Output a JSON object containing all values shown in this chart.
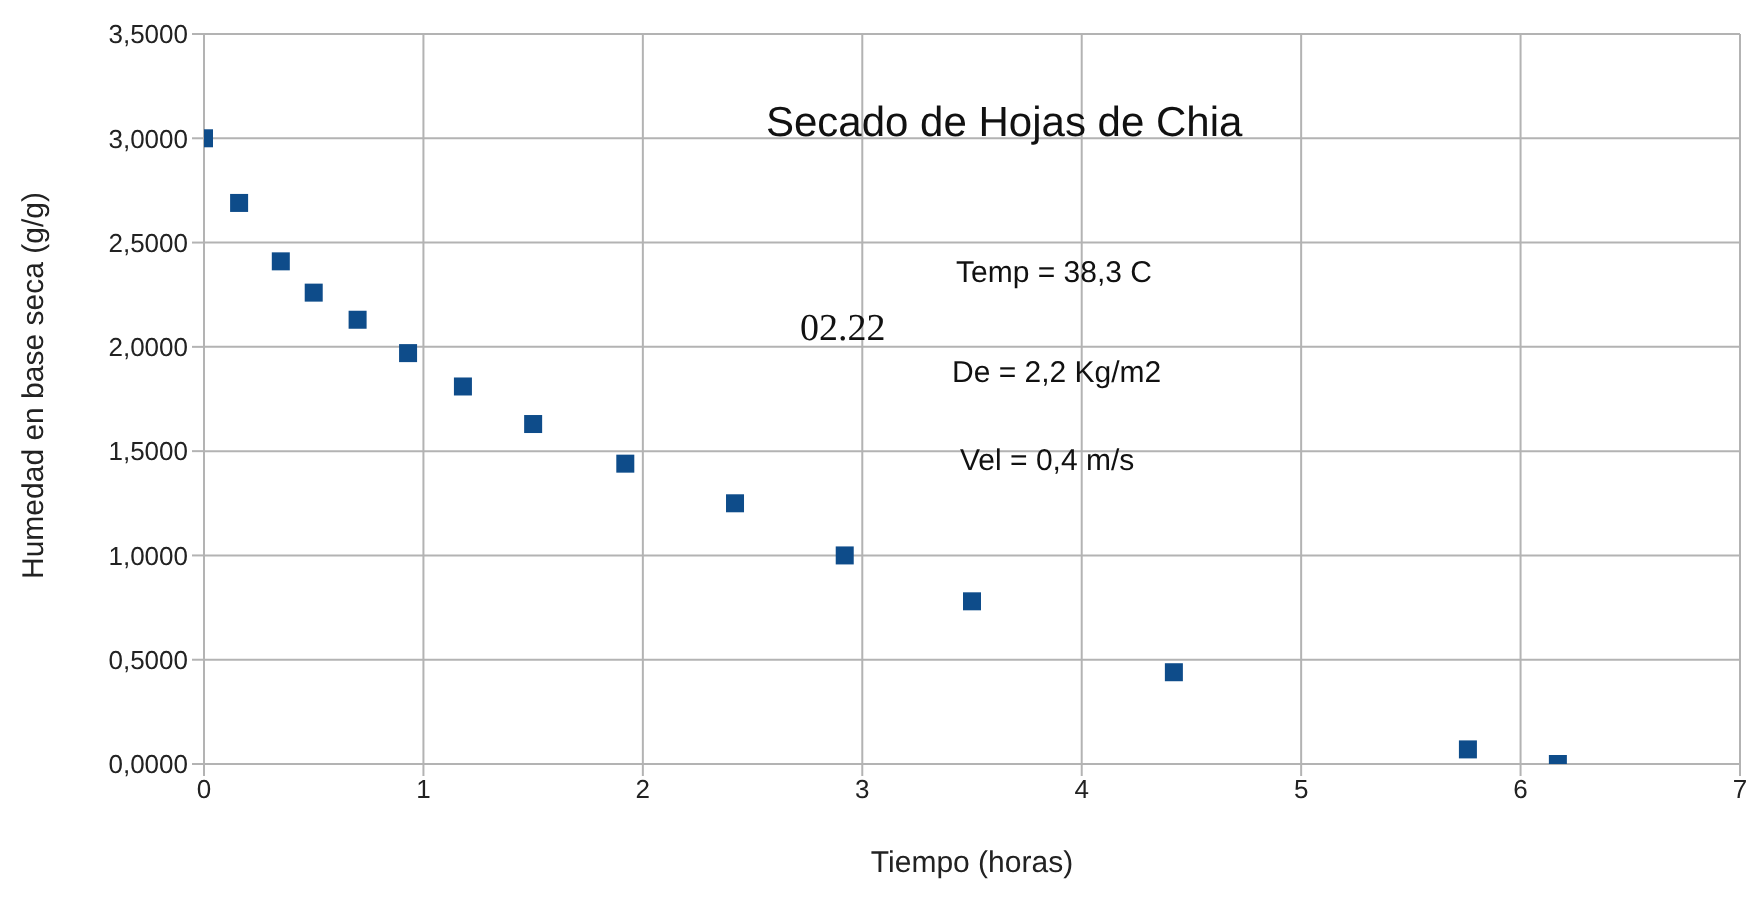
{
  "chart_data": {
    "type": "scatter",
    "title": "Secado de Hojas de Chia",
    "xlabel": "Tiempo (horas)",
    "ylabel": "Humedad en base seca (g/g)",
    "x": [
      0,
      0.16,
      0.35,
      0.5,
      0.7,
      0.93,
      1.18,
      1.5,
      1.92,
      2.42,
      2.92,
      3.5,
      4.42,
      5.76,
      6.17
    ],
    "series": [
      {
        "color": "#0e4c8a",
        "values": [
          3.0,
          2.69,
          2.41,
          2.26,
          2.13,
          1.97,
          1.81,
          1.63,
          1.44,
          1.25,
          1.0,
          0.78,
          0.44,
          0.07,
          0.0
        ]
      }
    ],
    "xlim": [
      0,
      7
    ],
    "xticks": [
      0,
      1,
      2,
      3,
      4,
      5,
      6,
      7
    ],
    "ylim": [
      0,
      3.5
    ],
    "yticks": [
      {
        "value": 0,
        "label": "0,0000"
      },
      {
        "value": 0.5,
        "label": "0,5000"
      },
      {
        "value": 1,
        "label": "1,0000"
      },
      {
        "value": 1.5,
        "label": "1,5000"
      },
      {
        "value": 2,
        "label": "2,0000"
      },
      {
        "value": 2.5,
        "label": "2,5000"
      },
      {
        "value": 3,
        "label": "3,0000"
      },
      {
        "value": 3.5,
        "label": "3,5000"
      }
    ],
    "grid": true,
    "marker": "square",
    "legend": false,
    "annotations": [
      "Temp = 38,3 C",
      "02.22",
      "De = 2,2 Kg/m2",
      "Vel = 0,4 m/s"
    ]
  }
}
